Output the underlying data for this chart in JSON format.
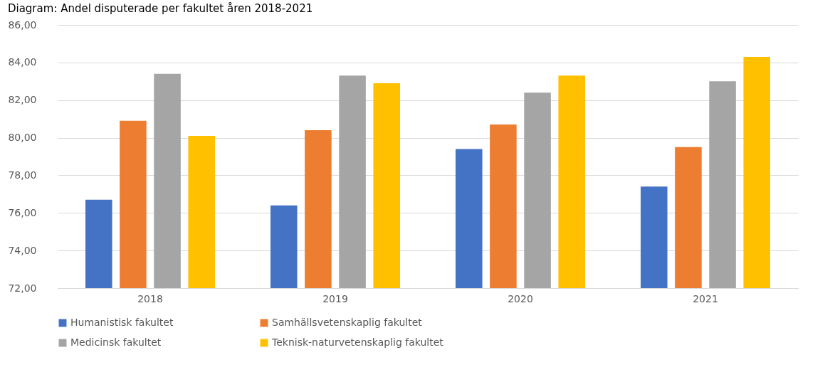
{
  "chart_data": {
    "type": "bar",
    "title": "Diagram: Andel disputerade per fakultet åren 2018-2021",
    "categories": [
      "2018",
      "2019",
      "2020",
      "2021"
    ],
    "series": [
      {
        "name": "Humanistisk fakultet",
        "color": "#4472c4",
        "values": [
          76.7,
          76.4,
          79.4,
          77.4
        ]
      },
      {
        "name": "Samhällsvetenskaplig fakultet",
        "color": "#ed7d31",
        "values": [
          80.9,
          80.4,
          80.7,
          79.5
        ]
      },
      {
        "name": "Medicinsk fakultet",
        "color": "#a5a5a5",
        "values": [
          83.4,
          83.3,
          82.4,
          83.0
        ]
      },
      {
        "name": "Teknisk-naturvetenskaplig fakultet",
        "color": "#ffc000",
        "values": [
          80.1,
          82.9,
          83.3,
          84.3
        ]
      }
    ],
    "ylim": [
      72,
      86
    ],
    "yticks": [
      {
        "value": 72,
        "label": "72,00"
      },
      {
        "value": 74,
        "label": "74,00"
      },
      {
        "value": 76,
        "label": "76,00"
      },
      {
        "value": 78,
        "label": "78,00"
      },
      {
        "value": 80,
        "label": "80,00"
      },
      {
        "value": 82,
        "label": "82,00"
      },
      {
        "value": 84,
        "label": "84,00"
      },
      {
        "value": 86,
        "label": "86,00"
      }
    ],
    "grid": "y",
    "legend": "bottom"
  }
}
